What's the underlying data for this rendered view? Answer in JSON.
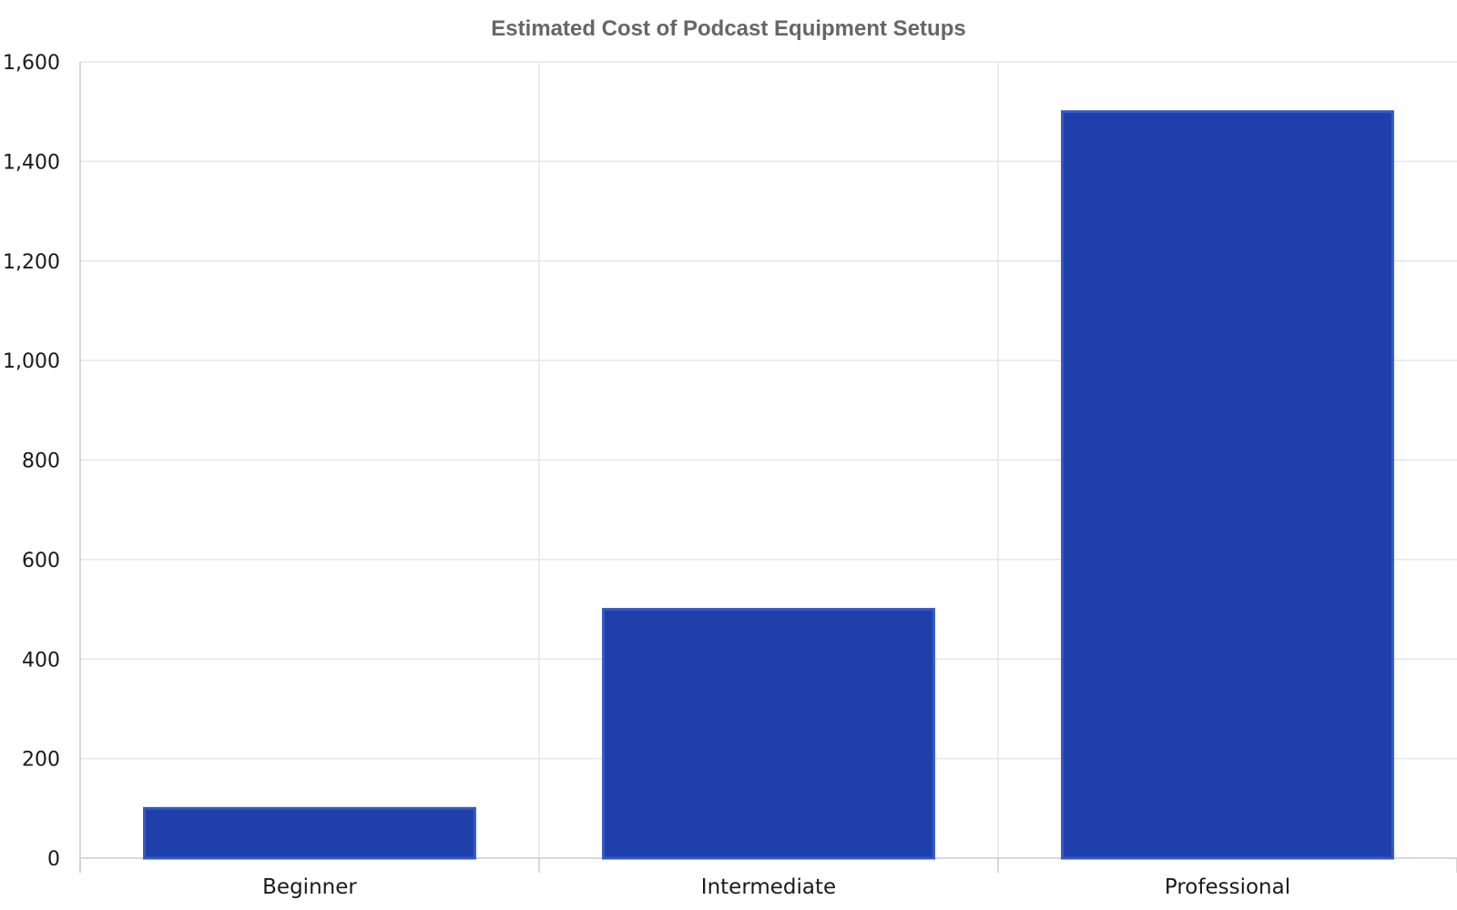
{
  "chart_data": {
    "type": "bar",
    "title": "Estimated Cost of Podcast Equipment Setups",
    "xlabel": "",
    "ylabel": "",
    "categories": [
      "Beginner",
      "Intermediate",
      "Professional"
    ],
    "values": [
      100,
      500,
      1500
    ],
    "ylim": [
      0,
      1600
    ],
    "yticks": [
      0,
      200,
      400,
      600,
      800,
      1000,
      1200,
      1400,
      1600
    ],
    "ytick_labels": [
      "0",
      "200",
      "400",
      "600",
      "800",
      "1,000",
      "1,200",
      "1,400",
      "1,600"
    ],
    "grid": true,
    "legend": "none",
    "colors": {
      "bar_fill": "#1f3faa",
      "bar_edge": "#3558c9",
      "grid": "#e6e6e6",
      "axis": "#cccccc"
    }
  }
}
